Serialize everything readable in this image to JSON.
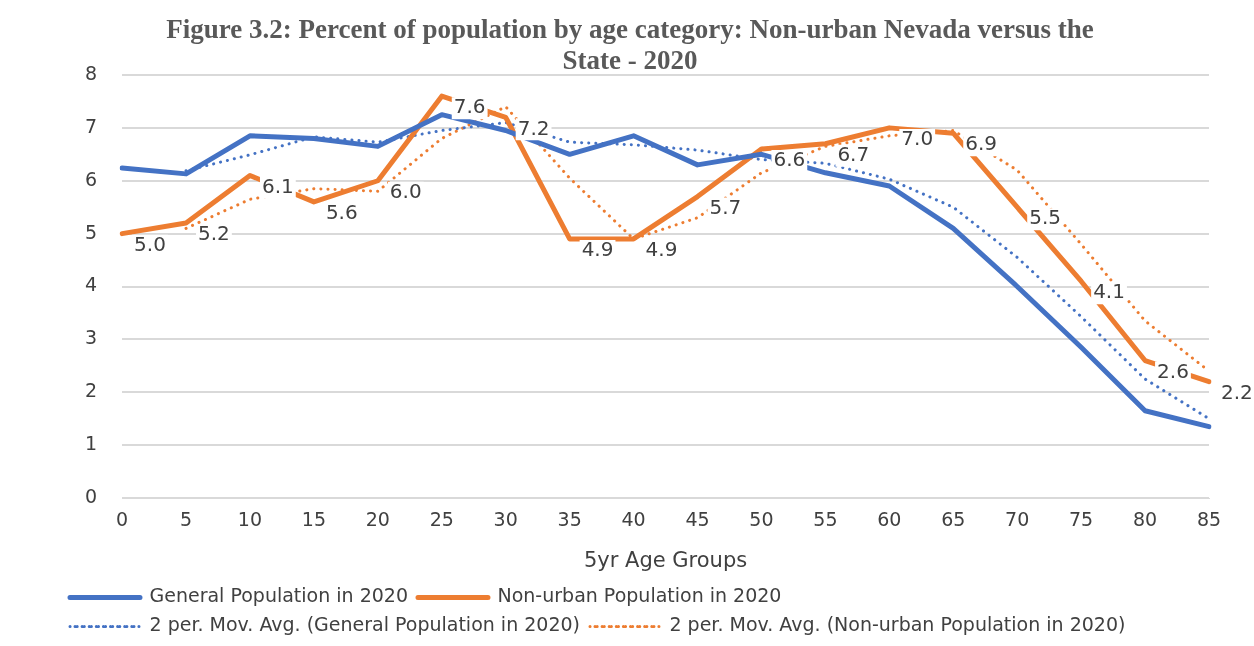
{
  "chart_data": {
    "type": "line",
    "title": "Figure 3.2: Percent of population by age category: Non-urban Nevada versus the State - 2020",
    "xlabel": "5yr Age Groups",
    "categories": [
      "0",
      "5",
      "10",
      "15",
      "20",
      "25",
      "30",
      "35",
      "40",
      "45",
      "50",
      "55",
      "60",
      "65",
      "70",
      "75",
      "80",
      "85"
    ],
    "series": [
      {
        "name": "General Population in 2020",
        "color": "#4472c4",
        "line_style": "solid",
        "values": [
          6.24,
          6.13,
          6.85,
          6.8,
          6.65,
          7.25,
          6.95,
          6.5,
          6.85,
          6.3,
          6.5,
          6.15,
          5.9,
          5.1,
          4.0,
          2.85,
          1.65,
          1.35
        ]
      },
      {
        "name": "Non-urban Population in 2020",
        "color": "#ed7d31",
        "line_style": "solid",
        "values": [
          5.0,
          5.2,
          6.1,
          5.6,
          6.0,
          7.6,
          7.2,
          4.9,
          4.9,
          5.7,
          6.6,
          6.7,
          7.0,
          6.9,
          5.5,
          4.1,
          2.6,
          2.2
        ],
        "value_labels": [
          "5.0",
          "5.2",
          "6.1",
          "5.6",
          "6.0",
          "7.6",
          "7.2",
          "4.9",
          "4.9",
          "5.7",
          "6.6",
          "6.7",
          "7.0",
          "6.9",
          "5.5",
          "4.1",
          "2.6",
          "2.2"
        ]
      },
      {
        "name": "2 per. Mov. Avg. (General Population in 2020)",
        "color": "#4472c4",
        "line_style": "dotted",
        "values": [
          null,
          6.19,
          6.49,
          6.83,
          6.73,
          6.95,
          7.1,
          6.73,
          6.68,
          6.58,
          6.4,
          6.33,
          6.03,
          5.5,
          4.55,
          3.43,
          2.25,
          1.5
        ]
      },
      {
        "name": "2 per. Mov. Avg. (Non-urban Population in 2020)",
        "color": "#ed7d31",
        "line_style": "dotted",
        "values": [
          null,
          5.1,
          5.65,
          5.85,
          5.8,
          6.8,
          7.4,
          6.05,
          4.9,
          5.3,
          6.15,
          6.65,
          6.85,
          6.95,
          6.2,
          4.8,
          3.35,
          2.4
        ]
      }
    ],
    "ylim": [
      0,
      8
    ],
    "yticks": [
      0,
      1,
      2,
      3,
      4,
      5,
      6,
      7,
      8
    ],
    "grid": "y",
    "legend": "bottom",
    "marker": "none"
  }
}
